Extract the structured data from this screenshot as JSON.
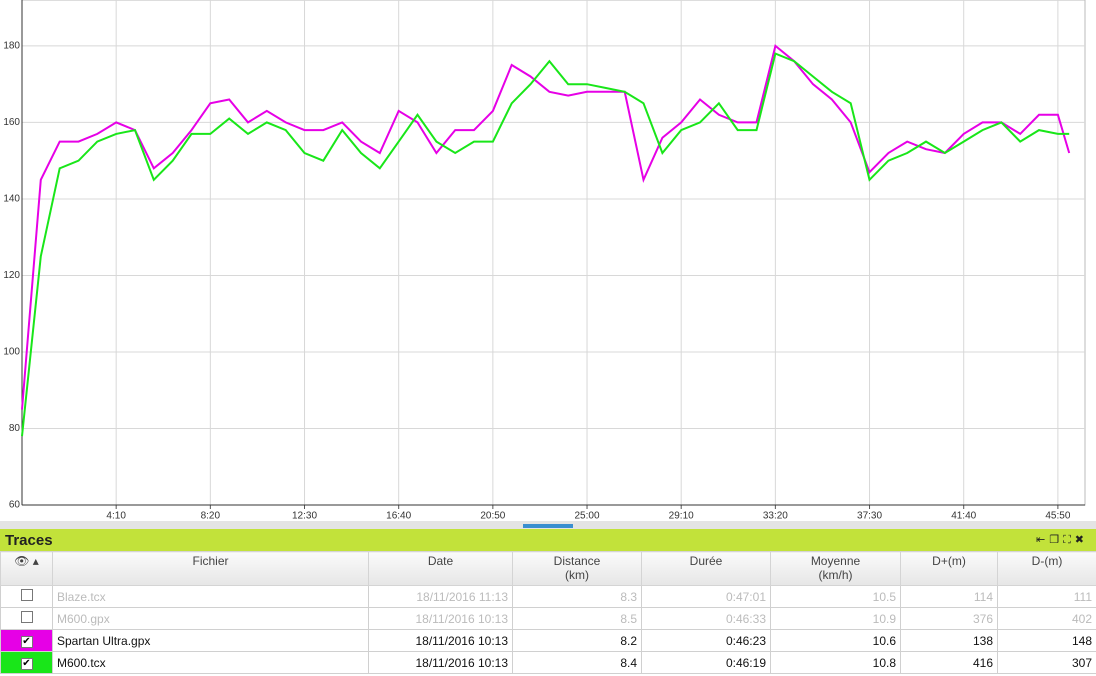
{
  "chart_data": {
    "type": "line",
    "x": [
      0,
      50,
      100,
      150,
      200,
      250,
      300,
      350,
      400,
      450,
      500,
      550,
      600,
      650,
      700,
      750,
      800,
      850,
      900,
      950,
      1000,
      1050,
      1100,
      1150,
      1200,
      1250,
      1300,
      1350,
      1400,
      1450,
      1500,
      1550,
      1600,
      1650,
      1700,
      1750,
      1800,
      1850,
      1900,
      1950,
      2000,
      2050,
      2100,
      2150,
      2200,
      2250,
      2300,
      2350,
      2400,
      2450,
      2500,
      2550,
      2600,
      2650,
      2700,
      2750,
      2780
    ],
    "series": [
      {
        "name": "Spartan Ultra.gpx",
        "color": "#e600e6",
        "values": [
          85,
          145,
          155,
          155,
          157,
          160,
          158,
          148,
          152,
          158,
          165,
          166,
          160,
          163,
          160,
          158,
          158,
          160,
          155,
          152,
          163,
          160,
          152,
          158,
          158,
          163,
          175,
          172,
          168,
          167,
          168,
          168,
          168,
          145,
          156,
          160,
          166,
          162,
          160,
          160,
          180,
          176,
          170,
          166,
          160,
          147,
          152,
          155,
          153,
          152,
          157,
          160,
          160,
          157,
          162,
          162,
          152
        ]
      },
      {
        "name": "M600.tcx",
        "color": "#19e619",
        "values": [
          78,
          125,
          148,
          150,
          155,
          157,
          158,
          145,
          150,
          157,
          157,
          161,
          157,
          160,
          158,
          152,
          150,
          158,
          152,
          148,
          155,
          162,
          155,
          152,
          155,
          155,
          165,
          170,
          176,
          170,
          170,
          169,
          168,
          165,
          152,
          158,
          160,
          165,
          158,
          158,
          178,
          176,
          172,
          168,
          165,
          145,
          150,
          152,
          155,
          152,
          155,
          158,
          160,
          155,
          158,
          157,
          157
        ]
      }
    ],
    "xlim": [
      0,
      2822
    ],
    "ylim": [
      60,
      192
    ],
    "xticks": [
      {
        "value": 250,
        "label": "4:10"
      },
      {
        "value": 500,
        "label": "8:20"
      },
      {
        "value": 750,
        "label": "12:30"
      },
      {
        "value": 1000,
        "label": "16:40"
      },
      {
        "value": 1250,
        "label": "20:50"
      },
      {
        "value": 1500,
        "label": "25:00"
      },
      {
        "value": 1750,
        "label": "29:10"
      },
      {
        "value": 2000,
        "label": "33:20"
      },
      {
        "value": 2250,
        "label": "37:30"
      },
      {
        "value": 2500,
        "label": "41:40"
      },
      {
        "value": 2750,
        "label": "45:50"
      }
    ],
    "yticks": [
      60,
      80,
      100,
      120,
      140,
      160,
      180
    ],
    "grid": true
  },
  "panel": {
    "title": "Traces",
    "columns": [
      "Fichier",
      "Date",
      "Distance\n(km)",
      "Durée",
      "Moyenne\n(km/h)",
      "D+(m)",
      "D-(m)"
    ],
    "rows": [
      {
        "checked": false,
        "cells": [
          "Blaze.tcx",
          "18/11/2016 11:13",
          8.3,
          "0:47:01",
          10.5,
          114,
          111
        ]
      },
      {
        "checked": false,
        "cells": [
          "M600.gpx",
          "18/11/2016 10:13",
          8.5,
          "0:46:33",
          10.9,
          376,
          402
        ]
      },
      {
        "checked": true,
        "color": "#e600e6",
        "cells": [
          "Spartan Ultra.gpx",
          "18/11/2016 10:13",
          8.2,
          "0:46:23",
          10.6,
          138,
          148
        ]
      },
      {
        "checked": true,
        "color": "#19e619",
        "cells": [
          "M600.tcx",
          "18/11/2016 10:13",
          8.4,
          "0:46:19",
          10.8,
          416,
          307
        ]
      }
    ]
  }
}
